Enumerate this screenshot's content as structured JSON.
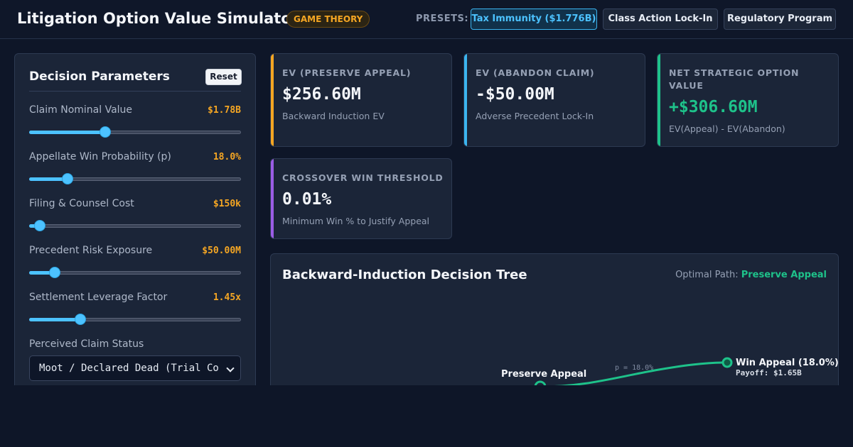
{
  "header": {
    "title": "Litigation Option Value Simulator",
    "tag": "GAME THEORY",
    "presets_label": "PRESETS:",
    "presets": [
      {
        "label": "Tax Immunity ($1.776B)",
        "active": true
      },
      {
        "label": "Class Action Lock-In",
        "active": false
      },
      {
        "label": "Regulatory Program",
        "active": false
      }
    ]
  },
  "panel": {
    "title": "Decision Parameters",
    "reset_label": "Reset",
    "params": [
      {
        "label": "Claim Nominal Value",
        "value": "$1.78B",
        "fill_fraction": 0.36
      },
      {
        "label": "Appellate Win Probability (p)",
        "value": "18.0%",
        "fill_fraction": 0.18
      },
      {
        "label": "Filing & Counsel Cost",
        "value": "$150k",
        "fill_fraction": 0.05
      },
      {
        "label": "Precedent Risk Exposure",
        "value": "$50.00M",
        "fill_fraction": 0.12
      },
      {
        "label": "Settlement Leverage Factor",
        "value": "1.45x",
        "fill_fraction": 0.24
      }
    ],
    "status_label": "Perceived Claim Status",
    "status_value": "Moot / Declared Dead (Trial Court)"
  },
  "cards": [
    {
      "label": "EV (PRESERVE APPEAL)",
      "value": "$256.60M",
      "sub": "Backward Induction EV",
      "accent": "#f5a623",
      "value_color": "#f4f6fa"
    },
    {
      "label": "EV (ABANDON CLAIM)",
      "value": "-$50.00M",
      "sub": "Adverse Precedent Lock-In",
      "accent": "#3bb5f0",
      "value_color": "#f4f6fa"
    },
    {
      "label": "NET STRATEGIC OPTION VALUE",
      "value": "+$306.60M",
      "sub": "EV(Appeal) - EV(Abandon)",
      "accent": "#1ec28a",
      "value_color": "#1ec28a"
    },
    {
      "label": "CROSSOVER WIN THRESHOLD",
      "value": "0.01%",
      "sub": "Minimum Win % to Justify Appeal",
      "accent": "#9b5de5",
      "value_color": "#f4f6fa"
    }
  ],
  "tree": {
    "title": "Backward-Induction Decision Tree",
    "optimal_label": "Optimal Path:",
    "optimal_value": "Preserve Appeal",
    "preserve_label": "Preserve Appeal",
    "branch_prob": "p = 18.0%",
    "win_label": "Win Appeal (18.0%)",
    "win_payoff": "Payoff: $1.65B",
    "path_color": "#1ec28a"
  }
}
